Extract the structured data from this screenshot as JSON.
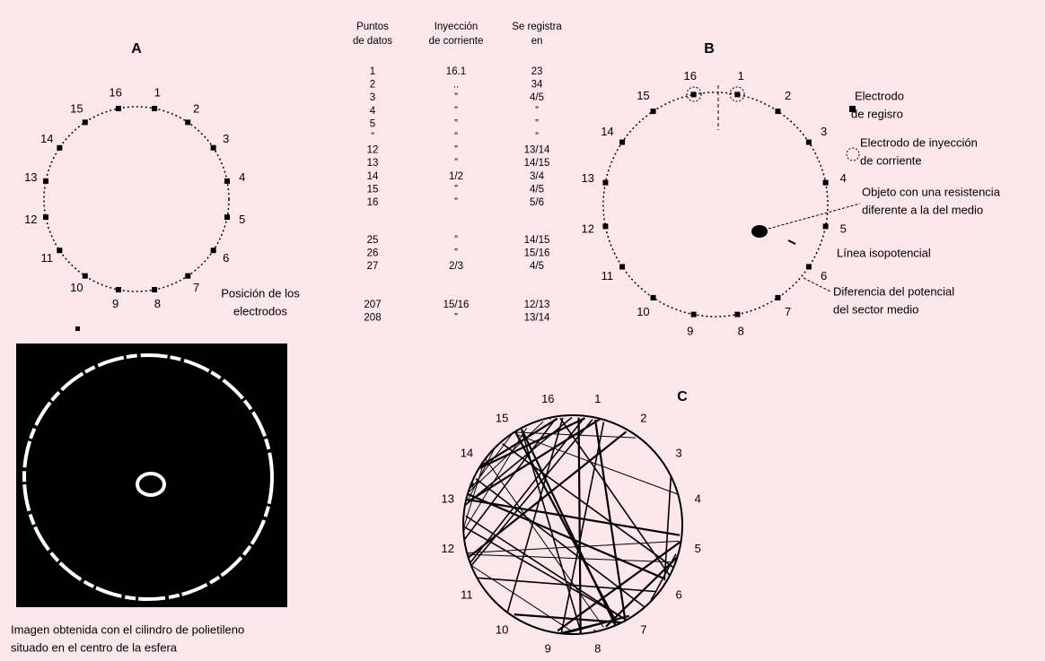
{
  "panelA": {
    "label": "A",
    "electrodes": [
      "1",
      "2",
      "3",
      "4",
      "5",
      "6",
      "7",
      "8",
      "9",
      "10",
      "11",
      "12",
      "13",
      "14",
      "15",
      "16"
    ],
    "caption": [
      "Posición de los",
      "electrodos"
    ]
  },
  "table": {
    "headers": [
      [
        "Puntos",
        "de datos"
      ],
      [
        "Inyección",
        "de corriente"
      ],
      [
        "Se registra",
        "en"
      ]
    ],
    "groups": [
      [
        [
          "1",
          "16.1",
          "23"
        ],
        [
          "2",
          "..",
          "34"
        ],
        [
          "3",
          "”",
          "4/5"
        ],
        [
          "4",
          "”",
          "”"
        ],
        [
          "5",
          "”",
          "”"
        ],
        [
          "”",
          "”",
          "”"
        ],
        [
          "12",
          "”",
          "13/14"
        ],
        [
          "13",
          "”",
          "14/15"
        ],
        [
          "14",
          "1/2",
          "3/4"
        ],
        [
          "15",
          "”",
          "4/5"
        ],
        [
          "16",
          "”",
          "5/6"
        ]
      ],
      [
        [
          "25",
          "”",
          "14/15"
        ],
        [
          "26",
          "”",
          "15/16"
        ],
        [
          "27",
          "2/3",
          "4/5"
        ]
      ],
      [
        [
          "207",
          "15/16",
          "12/13"
        ],
        [
          "208",
          "”",
          "13/14"
        ]
      ]
    ]
  },
  "panelB": {
    "label": "B",
    "electrodes": [
      "1",
      "2",
      "3",
      "4",
      "5",
      "6",
      "7",
      "8",
      "9",
      "10",
      "11",
      "12",
      "13",
      "14",
      "15",
      "16"
    ],
    "annotations": [
      [
        "Electrodo",
        "de regisro"
      ],
      [
        "Electrodo de inyección",
        "de corriente"
      ],
      [
        "Objeto con una resistencia",
        "diferente a la del medio"
      ],
      [
        "Línea isopotencial"
      ],
      [
        "Diferencia del potencial",
        "del sector medio"
      ]
    ]
  },
  "image": {
    "caption": [
      "Imagen obtenida con el cilindro de polietileno",
      "situado en el centro de la esfera"
    ]
  },
  "panelC": {
    "label": "C",
    "electrodes": [
      "1",
      "2",
      "3",
      "4",
      "5",
      "6",
      "7",
      "8",
      "9",
      "10",
      "11",
      "12",
      "13",
      "14",
      "15",
      "16"
    ]
  }
}
